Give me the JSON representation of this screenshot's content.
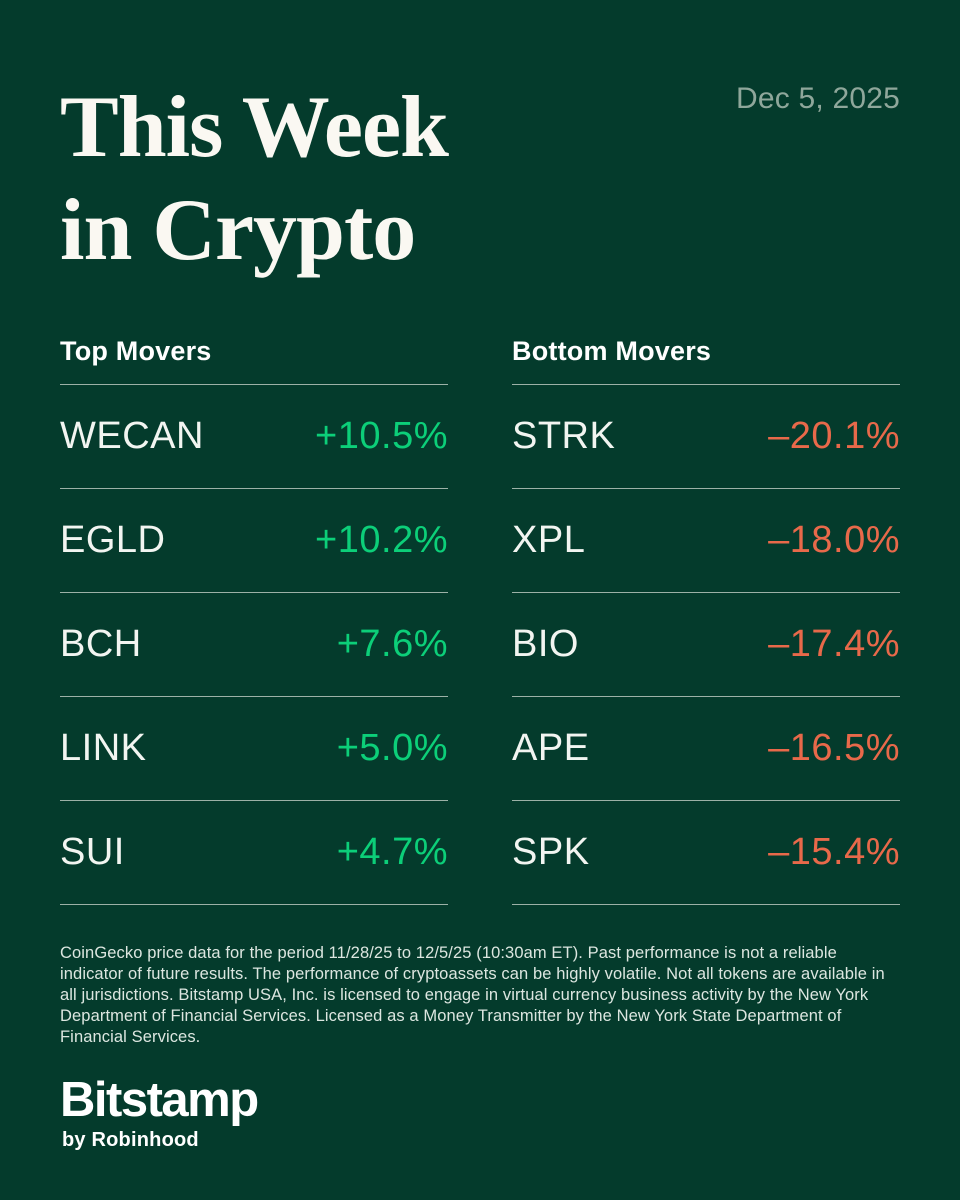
{
  "page": {
    "date": "Dec 5, 2025",
    "title_line1": "This Week",
    "title_line2": "in Crypto"
  },
  "movers": {
    "top": {
      "heading": "Top Movers",
      "rows": [
        {
          "ticker": "WECAN",
          "change": "+10.5%"
        },
        {
          "ticker": "EGLD",
          "change": "+10.2%"
        },
        {
          "ticker": "BCH",
          "change": "+7.6%"
        },
        {
          "ticker": "LINK",
          "change": "+5.0%"
        },
        {
          "ticker": "SUI",
          "change": "+4.7%"
        }
      ]
    },
    "bottom": {
      "heading": "Bottom Movers",
      "rows": [
        {
          "ticker": "STRK",
          "change": "–20.1%"
        },
        {
          "ticker": "XPL",
          "change": "–18.0%"
        },
        {
          "ticker": "BIO",
          "change": "–17.4%"
        },
        {
          "ticker": "APE",
          "change": "–16.5%"
        },
        {
          "ticker": "SPK",
          "change": "–15.4%"
        }
      ]
    }
  },
  "chart_data": [
    {
      "type": "table",
      "title": "Top Movers",
      "rows": [
        {
          "ticker": "WECAN",
          "change_pct": 10.5
        },
        {
          "ticker": "EGLD",
          "change_pct": 10.2
        },
        {
          "ticker": "BCH",
          "change_pct": 7.6
        },
        {
          "ticker": "LINK",
          "change_pct": 5.0
        },
        {
          "ticker": "SUI",
          "change_pct": 4.7
        }
      ]
    },
    {
      "type": "table",
      "title": "Bottom Movers",
      "rows": [
        {
          "ticker": "STRK",
          "change_pct": -20.1
        },
        {
          "ticker": "XPL",
          "change_pct": -18.0
        },
        {
          "ticker": "BIO",
          "change_pct": -17.4
        },
        {
          "ticker": "APE",
          "change_pct": -16.5
        },
        {
          "ticker": "SPK",
          "change_pct": -15.4
        }
      ]
    }
  ],
  "footer": {
    "disclaimer": "CoinGecko price data for the period 11/28/25 to 12/5/25 (10:30am ET). Past performance is not a reliable indicator of future results. The performance of cryptoassets can be highly volatile. Not all tokens are available in all jurisdictions. Bitstamp USA, Inc. is licensed to engage in virtual currency business activity by the New York Department of Financial Services. Licensed as a Money Transmitter by the New York State Department of Financial Services.",
    "logo": "Bitstamp",
    "logo_subtitle": "by Robinhood"
  },
  "colors": {
    "background": "#043B2C",
    "positive": "#0CCF79",
    "negative": "#E8694A",
    "muted": "#8FA79B",
    "separator": "#9DB1A7"
  }
}
